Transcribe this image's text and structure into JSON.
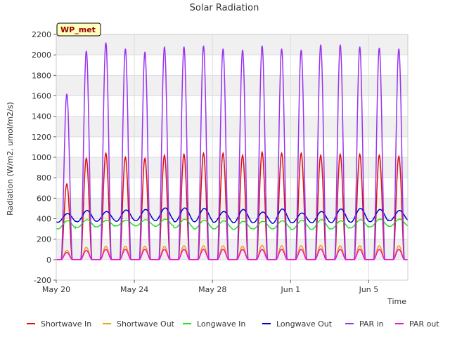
{
  "chart_data": {
    "type": "line",
    "title": "Solar Radiation",
    "xlabel": "Time",
    "ylabel": "Radiation (W/m2, umol/m2/s)",
    "site_label": "WP_met",
    "x_start": "2024-05-20",
    "x_end": "2024-06-07",
    "xlim": [
      0,
      18
    ],
    "x_ticks": [
      {
        "day": 0,
        "label": "May 20"
      },
      {
        "day": 4,
        "label": "May 24"
      },
      {
        "day": 8,
        "label": "May 28"
      },
      {
        "day": 12,
        "label": "Jun 1"
      },
      {
        "day": 16,
        "label": "Jun 5"
      }
    ],
    "ylim": [
      -200,
      2200
    ],
    "y_ticks": [
      -200,
      0,
      200,
      400,
      600,
      800,
      1000,
      1200,
      1400,
      1600,
      1800,
      2000,
      2200
    ],
    "grid": true,
    "legend_position": "bottom",
    "days": [
      "May 20",
      "May 21",
      "May 22",
      "May 23",
      "May 24",
      "May 25",
      "May 26",
      "May 27",
      "May 28",
      "May 29",
      "May 30",
      "May 31",
      "Jun 1",
      "Jun 2",
      "Jun 3",
      "Jun 4",
      "Jun 5",
      "Jun 6"
    ],
    "series": [
      {
        "name": "Shortwave In",
        "color": "#dd1111",
        "kind": "diurnal",
        "daily_peak": [
          740,
          990,
          1040,
          1000,
          990,
          1020,
          1030,
          1040,
          1040,
          1020,
          1050,
          1040,
          1040,
          1020,
          1030,
          1030,
          1020,
          1010
        ]
      },
      {
        "name": "Shortwave Out",
        "color": "#f0a000",
        "kind": "diurnal",
        "daily_peak": [
          90,
          120,
          130,
          130,
          130,
          130,
          135,
          135,
          135,
          130,
          140,
          135,
          135,
          140,
          135,
          135,
          135,
          135
        ]
      },
      {
        "name": "Longwave In",
        "color": "#22dd22",
        "kind": "daily_wave",
        "daily_low": [
          300,
          315,
          320,
          330,
          330,
          325,
          310,
          300,
          300,
          295,
          300,
          300,
          295,
          295,
          300,
          310,
          320,
          325
        ],
        "daily_high": [
          380,
          390,
          385,
          385,
          390,
          395,
          395,
          385,
          380,
          375,
          375,
          380,
          385,
          390,
          380,
          390,
          395,
          395
        ]
      },
      {
        "name": "Longwave Out",
        "color": "#0000cc",
        "kind": "daily_wave",
        "daily_low": [
          365,
          370,
          375,
          375,
          380,
          380,
          370,
          370,
          365,
          360,
          360,
          355,
          360,
          360,
          360,
          365,
          370,
          380
        ],
        "daily_high": [
          450,
          480,
          470,
          485,
          490,
          505,
          505,
          500,
          470,
          490,
          465,
          495,
          455,
          470,
          495,
          500,
          490,
          480
        ]
      },
      {
        "name": "PAR in",
        "color": "#9933ee",
        "kind": "diurnal",
        "daily_peak": [
          1620,
          2040,
          2120,
          2060,
          2030,
          2080,
          2080,
          2090,
          2060,
          2050,
          2090,
          2060,
          2050,
          2100,
          2100,
          2080,
          2070,
          2060
        ]
      },
      {
        "name": "PAR out",
        "color": "#ee11cc",
        "kind": "diurnal",
        "daily_peak": [
          70,
          90,
          100,
          100,
          100,
          100,
          100,
          100,
          100,
          100,
          100,
          100,
          100,
          105,
          100,
          100,
          100,
          100
        ]
      }
    ]
  }
}
